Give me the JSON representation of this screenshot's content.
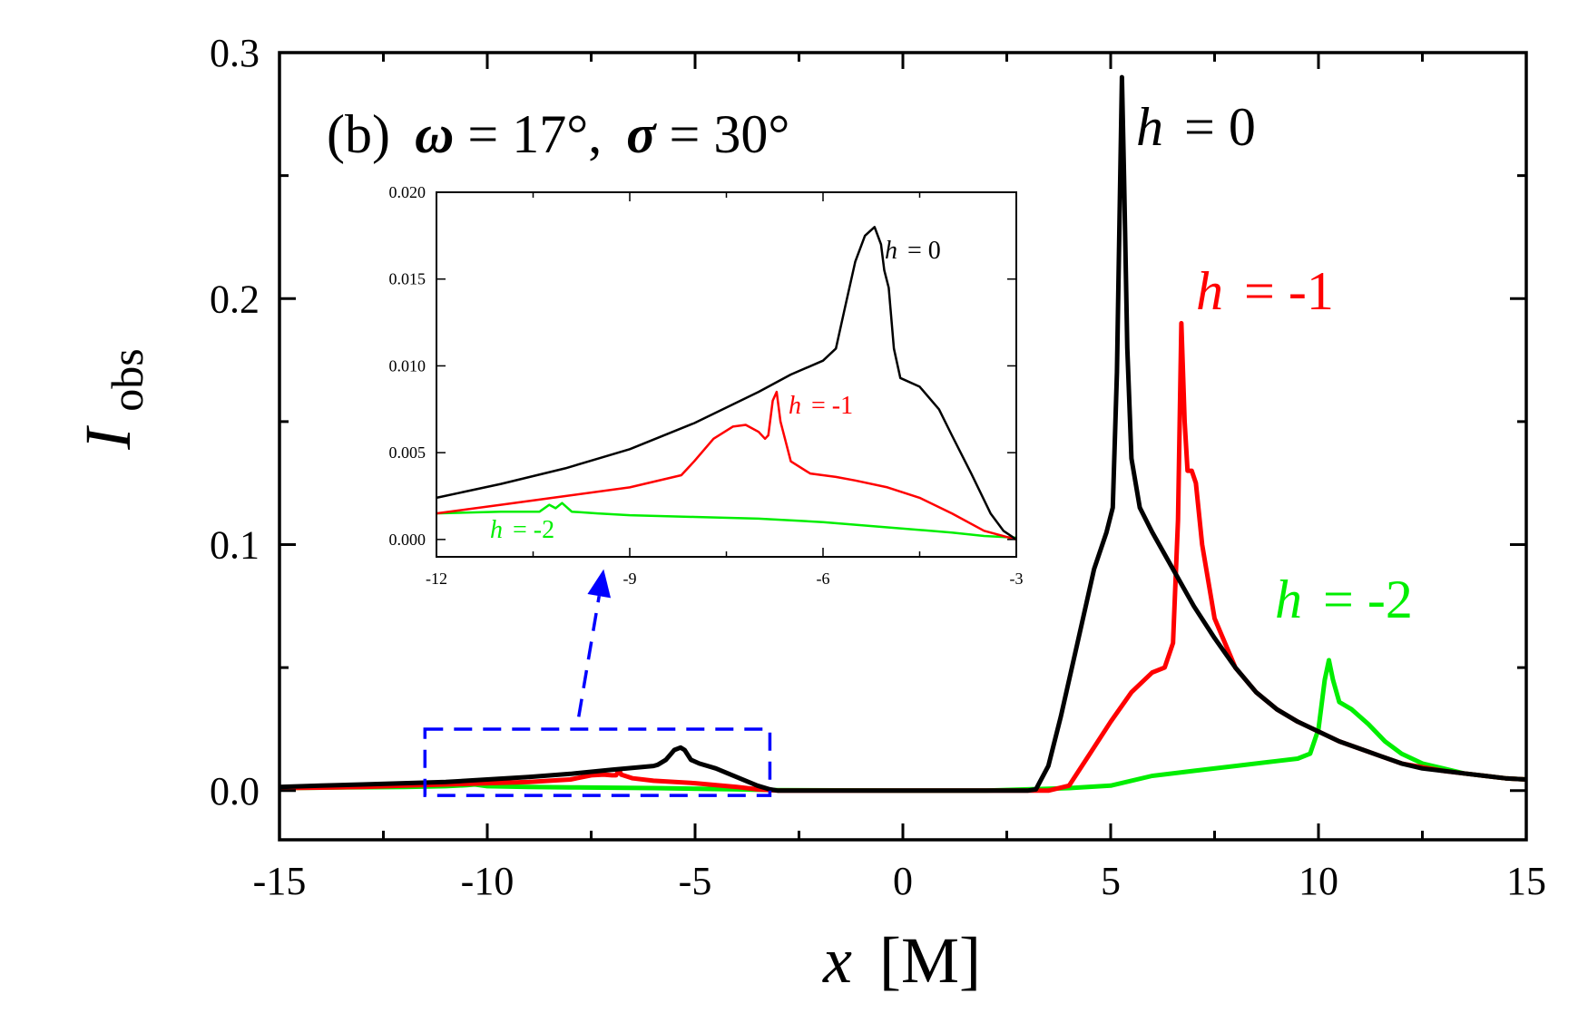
{
  "chart_data": {
    "type": "line",
    "panel_label": "(b)",
    "omega_symbol": "ω",
    "omega_value": "= 17°,",
    "sigma_symbol": "σ",
    "sigma_value": "= 30°",
    "xlabel_var": "x",
    "xlabel_unit": "[M]",
    "ylabel_main": "I",
    "ylabel_sub": "obs",
    "xlim": [
      -15,
      15
    ],
    "ylim": [
      -0.02,
      0.3
    ],
    "xticks": [
      -15,
      -10,
      -5,
      0,
      5,
      10,
      15
    ],
    "xtick_labels": [
      "-15",
      "-10",
      "-5",
      "0",
      "5",
      "10",
      "15"
    ],
    "yticks": [
      0.0,
      0.1,
      0.2,
      0.3
    ],
    "ytick_labels": [
      "0.0",
      "0.1",
      "0.2",
      "0.3"
    ],
    "grid": false,
    "colors": {
      "h0": "#000000",
      "h1": "#ff0000",
      "h2": "#00ee00",
      "highlight": "#0000ff"
    },
    "series": [
      {
        "name": "h = 0",
        "label_var": "h",
        "label_val": "= 0",
        "color": "#000000",
        "points": [
          [
            -15,
            0.0015
          ],
          [
            -14,
            0.002
          ],
          [
            -13,
            0.0025
          ],
          [
            -12,
            0.003
          ],
          [
            -11,
            0.0035
          ],
          [
            -10,
            0.0045
          ],
          [
            -9,
            0.0055
          ],
          [
            -8,
            0.0068
          ],
          [
            -7,
            0.0085
          ],
          [
            -6,
            0.01
          ],
          [
            -5.9,
            0.0105
          ],
          [
            -5.7,
            0.0125
          ],
          [
            -5.5,
            0.0165
          ],
          [
            -5.35,
            0.0175
          ],
          [
            -5.25,
            0.0165
          ],
          [
            -5.1,
            0.0125
          ],
          [
            -4.9,
            0.011
          ],
          [
            -4.5,
            0.009
          ],
          [
            -4,
            0.0055
          ],
          [
            -3.5,
            0.002
          ],
          [
            -3.2,
            0.0005
          ],
          [
            -3,
            0.0
          ],
          [
            0,
            0.0
          ],
          [
            3,
            0.0
          ],
          [
            3.2,
            0.0005
          ],
          [
            3.5,
            0.01
          ],
          [
            3.8,
            0.03
          ],
          [
            4.2,
            0.06
          ],
          [
            4.6,
            0.09
          ],
          [
            4.9,
            0.105
          ],
          [
            5.05,
            0.115
          ],
          [
            5.15,
            0.17
          ],
          [
            5.22,
            0.24
          ],
          [
            5.27,
            0.29
          ],
          [
            5.32,
            0.25
          ],
          [
            5.4,
            0.18
          ],
          [
            5.5,
            0.135
          ],
          [
            5.7,
            0.115
          ],
          [
            6,
            0.105
          ],
          [
            6.5,
            0.09
          ],
          [
            7,
            0.075
          ],
          [
            7.5,
            0.062
          ],
          [
            8,
            0.05
          ],
          [
            8.5,
            0.04
          ],
          [
            9,
            0.033
          ],
          [
            9.5,
            0.028
          ],
          [
            10,
            0.024
          ],
          [
            10.5,
            0.02
          ],
          [
            11,
            0.017
          ],
          [
            11.5,
            0.014
          ],
          [
            12,
            0.011
          ],
          [
            12.5,
            0.009
          ],
          [
            13,
            0.008
          ],
          [
            13.5,
            0.007
          ],
          [
            14,
            0.006
          ],
          [
            14.5,
            0.005
          ],
          [
            15,
            0.0045
          ]
        ]
      },
      {
        "name": "h = -1",
        "label_var": "h",
        "label_val": "= -1",
        "color": "#ff0000",
        "points": [
          [
            -15,
            0.001
          ],
          [
            -14,
            0.0012
          ],
          [
            -13,
            0.0015
          ],
          [
            -12,
            0.002
          ],
          [
            -11,
            0.0025
          ],
          [
            -10,
            0.003
          ],
          [
            -9,
            0.0035
          ],
          [
            -8,
            0.0045
          ],
          [
            -7.5,
            0.0062
          ],
          [
            -7.2,
            0.0065
          ],
          [
            -7,
            0.0062
          ],
          [
            -6.9,
            0.0062
          ],
          [
            -6.83,
            0.0085
          ],
          [
            -6.78,
            0.0065
          ],
          [
            -6.5,
            0.005
          ],
          [
            -6,
            0.004
          ],
          [
            -5,
            0.003
          ],
          [
            -4,
            0.0015
          ],
          [
            -3.5,
            0.0005
          ],
          [
            -3,
            0.0
          ],
          [
            0,
            0.0
          ],
          [
            3.5,
            0.0
          ],
          [
            4,
            0.002
          ],
          [
            4.5,
            0.015
          ],
          [
            5,
            0.028
          ],
          [
            5.5,
            0.04
          ],
          [
            6,
            0.048
          ],
          [
            6.3,
            0.05
          ],
          [
            6.5,
            0.06
          ],
          [
            6.62,
            0.11
          ],
          [
            6.7,
            0.19
          ],
          [
            6.78,
            0.15
          ],
          [
            6.85,
            0.13
          ],
          [
            6.95,
            0.13
          ],
          [
            7.05,
            0.125
          ],
          [
            7.2,
            0.1
          ],
          [
            7.5,
            0.07
          ],
          [
            8,
            0.05
          ],
          [
            8.5,
            0.04
          ],
          [
            9,
            0.033
          ],
          [
            9.5,
            0.028
          ],
          [
            10,
            0.024
          ],
          [
            10.5,
            0.02
          ],
          [
            11,
            0.017
          ],
          [
            11.5,
            0.014
          ],
          [
            12,
            0.011
          ],
          [
            12.5,
            0.0095
          ],
          [
            13,
            0.008
          ],
          [
            13.5,
            0.007
          ],
          [
            14,
            0.006
          ],
          [
            14.5,
            0.005
          ],
          [
            15,
            0.0045
          ]
        ]
      },
      {
        "name": "h = -2",
        "label_var": "h",
        "label_val": "= -2",
        "color": "#00ee00",
        "points": [
          [
            -15,
            0.001
          ],
          [
            -12,
            0.0015
          ],
          [
            -11,
            0.0018
          ],
          [
            -10.5,
            0.0022
          ],
          [
            -10.3,
            0.0025
          ],
          [
            -10,
            0.0018
          ],
          [
            -9,
            0.0015
          ],
          [
            -8,
            0.0013
          ],
          [
            -6,
            0.001
          ],
          [
            -4,
            0.0005
          ],
          [
            -3,
            0.0002
          ],
          [
            0,
            0.0
          ],
          [
            2,
            0.0
          ],
          [
            3,
            0.0005
          ],
          [
            4,
            0.001
          ],
          [
            5,
            0.002
          ],
          [
            6,
            0.006
          ],
          [
            7,
            0.008
          ],
          [
            8,
            0.01
          ],
          [
            9,
            0.012
          ],
          [
            9.5,
            0.013
          ],
          [
            9.8,
            0.015
          ],
          [
            10,
            0.025
          ],
          [
            10.15,
            0.045
          ],
          [
            10.25,
            0.053
          ],
          [
            10.35,
            0.045
          ],
          [
            10.5,
            0.036
          ],
          [
            10.8,
            0.033
          ],
          [
            11.2,
            0.027
          ],
          [
            11.6,
            0.02
          ],
          [
            12,
            0.015
          ],
          [
            12.5,
            0.011
          ],
          [
            13,
            0.009
          ],
          [
            13.5,
            0.007
          ],
          [
            14,
            0.006
          ],
          [
            14.5,
            0.005
          ],
          [
            15,
            0.0045
          ]
        ]
      }
    ],
    "highlight_box": {
      "x": [
        -11.5,
        -3.2
      ],
      "y": [
        -0.002,
        0.025
      ]
    },
    "arrow": {
      "from": [
        -7.8,
        0.03
      ],
      "to": [
        -7.2,
        0.09
      ]
    },
    "inset": {
      "xlim": [
        -12,
        -3
      ],
      "ylim": [
        -0.001,
        0.02
      ],
      "xticks": [
        -12,
        -9,
        -6,
        -3
      ],
      "xtick_labels": [
        "-12",
        "-9",
        "-6",
        "-3"
      ],
      "yticks": [
        0.0,
        0.005,
        0.01,
        0.015,
        0.02
      ],
      "ytick_labels": [
        "0.000",
        "0.005",
        "0.010",
        "0.015",
        "0.020"
      ],
      "series": [
        {
          "name": "h = 0",
          "label_var": "h",
          "label_val": "= 0",
          "color": "#000000",
          "points": [
            [
              -12,
              0.0024
            ],
            [
              -11,
              0.0032
            ],
            [
              -10,
              0.0041
            ],
            [
              -9,
              0.0052
            ],
            [
              -8,
              0.0067
            ],
            [
              -7,
              0.0085
            ],
            [
              -6.5,
              0.0095
            ],
            [
              -6,
              0.0103
            ],
            [
              -5.8,
              0.011
            ],
            [
              -5.65,
              0.0135
            ],
            [
              -5.5,
              0.016
            ],
            [
              -5.35,
              0.0175
            ],
            [
              -5.2,
              0.018
            ],
            [
              -5.1,
              0.017
            ],
            [
              -5.05,
              0.0155
            ],
            [
              -4.98,
              0.0145
            ],
            [
              -4.9,
              0.011
            ],
            [
              -4.8,
              0.0093
            ],
            [
              -4.5,
              0.0088
            ],
            [
              -4.2,
              0.0075
            ],
            [
              -4,
              0.006
            ],
            [
              -3.7,
              0.0038
            ],
            [
              -3.4,
              0.0015
            ],
            [
              -3.2,
              0.0005
            ],
            [
              -3,
              0.0
            ]
          ]
        },
        {
          "name": "h = -1",
          "label_var": "h",
          "label_val": "= -1",
          "color": "#ff0000",
          "points": [
            [
              -12,
              0.0015
            ],
            [
              -11,
              0.002
            ],
            [
              -10,
              0.0025
            ],
            [
              -9,
              0.003
            ],
            [
              -8.2,
              0.0037
            ],
            [
              -8,
              0.0045
            ],
            [
              -7.7,
              0.0058
            ],
            [
              -7.4,
              0.0065
            ],
            [
              -7.2,
              0.0066
            ],
            [
              -7.0,
              0.0062
            ],
            [
              -6.9,
              0.0058
            ],
            [
              -6.85,
              0.006
            ],
            [
              -6.78,
              0.008
            ],
            [
              -6.72,
              0.0085
            ],
            [
              -6.66,
              0.0068
            ],
            [
              -6.5,
              0.0045
            ],
            [
              -6.2,
              0.0038
            ],
            [
              -5.8,
              0.0036
            ],
            [
              -5.5,
              0.0034
            ],
            [
              -5,
              0.003
            ],
            [
              -4.5,
              0.0024
            ],
            [
              -4,
              0.0015
            ],
            [
              -3.5,
              0.0005
            ],
            [
              -3,
              0.0
            ]
          ]
        },
        {
          "name": "h = -2",
          "label_var": "h",
          "label_val": "= -2",
          "color": "#00ee00",
          "points": [
            [
              -12,
              0.0015
            ],
            [
              -11,
              0.0016
            ],
            [
              -10.4,
              0.0016
            ],
            [
              -10.25,
              0.002
            ],
            [
              -10.15,
              0.0018
            ],
            [
              -10.05,
              0.0021
            ],
            [
              -9.9,
              0.0016
            ],
            [
              -9.5,
              0.0015
            ],
            [
              -9,
              0.0014
            ],
            [
              -8,
              0.0013
            ],
            [
              -7,
              0.0012
            ],
            [
              -6,
              0.001
            ],
            [
              -5,
              0.0007
            ],
            [
              -4,
              0.0004
            ],
            [
              -3.5,
              0.0002
            ],
            [
              -3,
              0.0001
            ]
          ]
        }
      ]
    }
  }
}
